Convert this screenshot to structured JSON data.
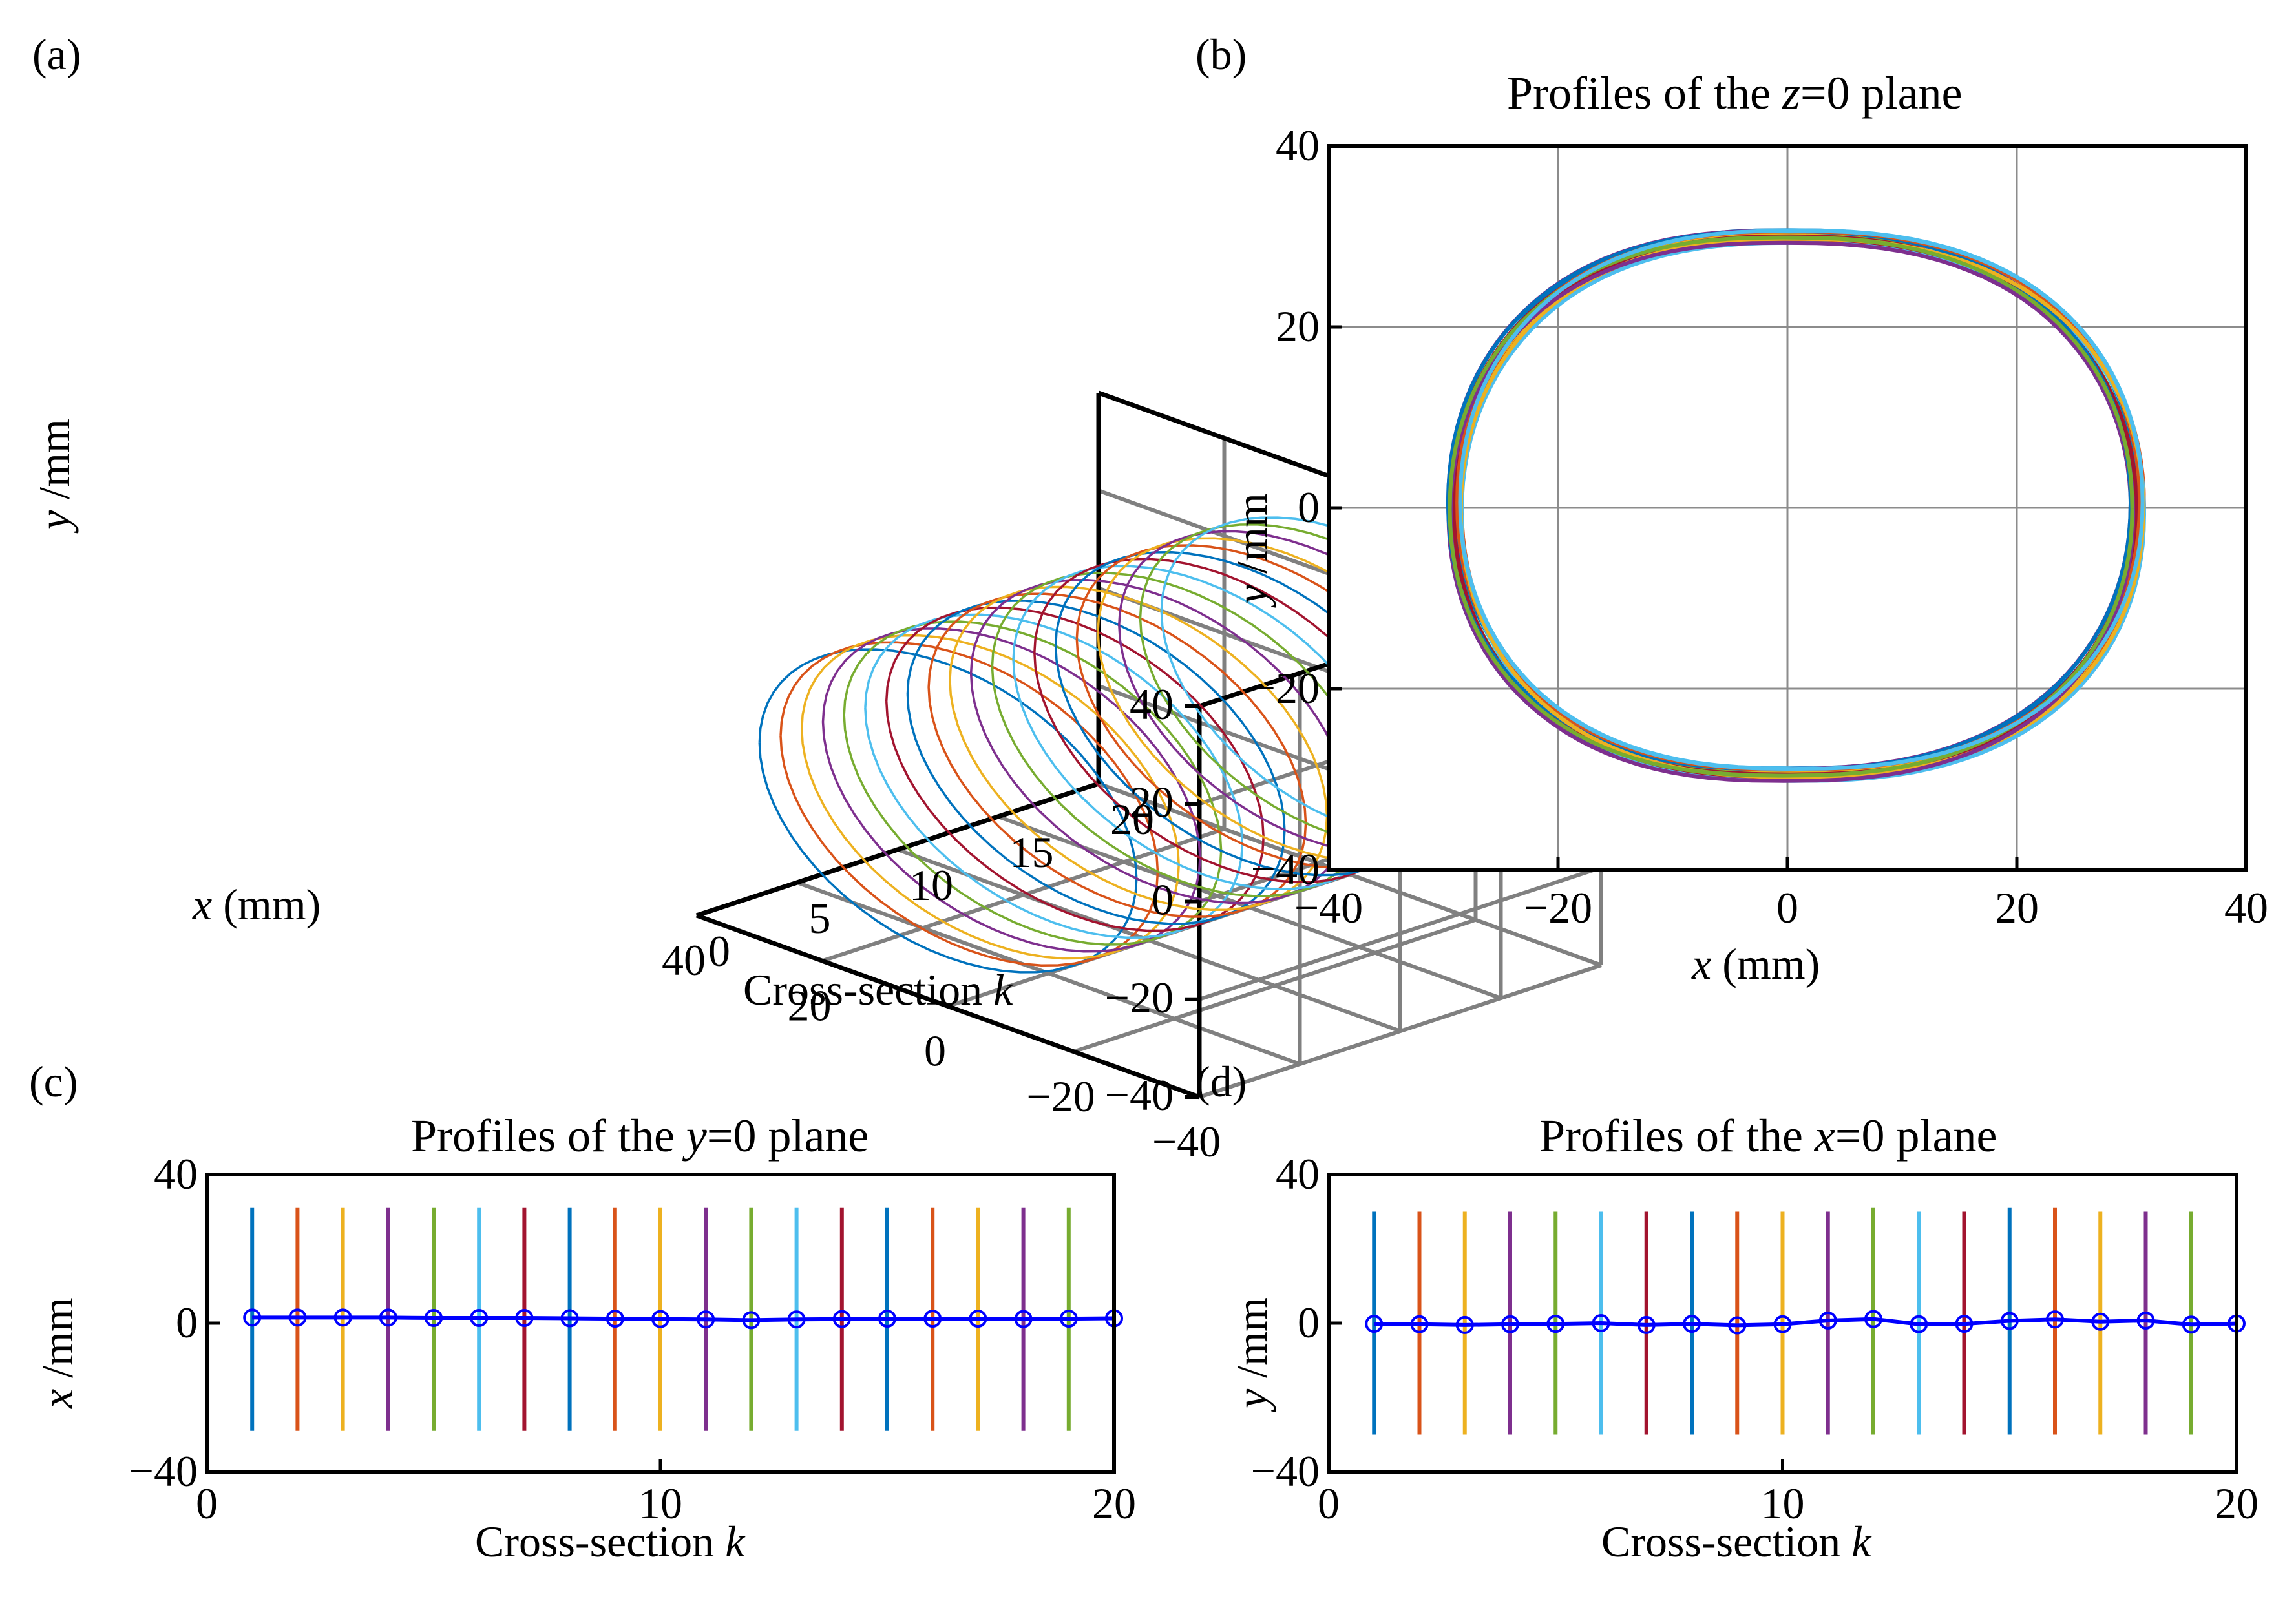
{
  "figure": {
    "palette": [
      "#0072BD",
      "#D95319",
      "#EDB120",
      "#7E2F8E",
      "#77AC30",
      "#4DBEEE",
      "#A2142F"
    ],
    "mean_marker_color": "#0000FF"
  },
  "chart_data": [
    {
      "panel": "(a)",
      "type": "line",
      "title": "",
      "projection": "3d",
      "xlabel_var": "x",
      "xlabel_unit": " (mm)",
      "ylabel_var": "y",
      "ylabel_unit": " /mm",
      "zlabel_text": "Cross-section ",
      "zlabel_var": "k",
      "x_ticks": [
        "-40",
        "-20",
        "0",
        "20",
        "40"
      ],
      "y_ticks": [
        "-40",
        "-20",
        "0",
        "20",
        "40"
      ],
      "k_ticks": [
        "0",
        "5",
        "10",
        "15",
        "20"
      ],
      "xlim": [
        -40,
        40
      ],
      "ylim": [
        -40,
        40
      ],
      "klim": [
        0,
        20
      ],
      "series_count": 20,
      "radius_x": 30,
      "radius_y": 30,
      "grid": true
    },
    {
      "panel": "(b)",
      "type": "line",
      "title_pre": "Profiles of the ",
      "title_var": "z",
      "title_post": "=0 plane",
      "xlabel_var": "x",
      "xlabel_unit": " (mm)",
      "ylabel_var": "y",
      "ylabel_unit": " /mm",
      "x_ticks": [
        "-40",
        "-20",
        "0",
        "20",
        "40"
      ],
      "y_ticks": [
        "-40",
        "-20",
        "0",
        "20",
        "40"
      ],
      "xlim": [
        -40,
        40
      ],
      "ylim": [
        -40,
        40
      ],
      "series_count": 20,
      "profile": {
        "x_left": -29,
        "x_right": 30.5,
        "y_top": 30,
        "y_bottom": -29.5
      },
      "grid": true
    },
    {
      "panel": "(c)",
      "type": "line",
      "title_pre": "Profiles of the ",
      "title_var": "y",
      "title_post": "=0 plane",
      "xlabel_text": "Cross-section ",
      "xlabel_var": "k",
      "ylabel_var": "x",
      "ylabel_unit": " /mm",
      "x_ticks": [
        "0",
        "10",
        "20"
      ],
      "y_ticks": [
        "-40",
        "0",
        "40"
      ],
      "xlim": [
        0,
        20
      ],
      "ylim": [
        -40,
        40
      ],
      "k": [
        1,
        2,
        3,
        4,
        5,
        6,
        7,
        8,
        9,
        10,
        11,
        12,
        13,
        14,
        15,
        16,
        17,
        18,
        19,
        20
      ],
      "segment_top": [
        31,
        31,
        31,
        31,
        31,
        31,
        31,
        31,
        31,
        31,
        31,
        31,
        31,
        31,
        31,
        31,
        31,
        31,
        31,
        31
      ],
      "segment_bottom": [
        -29,
        -29,
        -29,
        -29,
        -29,
        -29,
        -29,
        -29,
        -29,
        -29,
        -29,
        -29,
        -29,
        -29,
        -29,
        -29,
        -29,
        -29,
        -29,
        -29
      ],
      "mean": [
        1.5,
        1.5,
        1.5,
        1.5,
        1.4,
        1.4,
        1.4,
        1.3,
        1.2,
        1.1,
        1.0,
        0.8,
        1.0,
        1.1,
        1.2,
        1.2,
        1.2,
        1.1,
        1.2,
        1.3
      ]
    },
    {
      "panel": "(d)",
      "type": "line",
      "title_pre": "Profiles of the ",
      "title_var": "x",
      "title_post": "=0 plane",
      "xlabel_text": "Cross-section ",
      "xlabel_var": "k",
      "ylabel_var": "y",
      "ylabel_unit": " /mm",
      "x_ticks": [
        "0",
        "10",
        "20"
      ],
      "y_ticks": [
        "-40",
        "0",
        "40"
      ],
      "xlim": [
        0,
        20
      ],
      "ylim": [
        -40,
        40
      ],
      "k": [
        1,
        2,
        3,
        4,
        5,
        6,
        7,
        8,
        9,
        10,
        11,
        12,
        13,
        14,
        15,
        16,
        17,
        18,
        19,
        20
      ],
      "segment_top": [
        30,
        30,
        30,
        30,
        30,
        30,
        30,
        30,
        30,
        30,
        30,
        31,
        30,
        30,
        31,
        31,
        30,
        30,
        30,
        30
      ],
      "segment_bottom": [
        -30,
        -30,
        -30,
        -30,
        -30,
        -30,
        -30,
        -30,
        -30,
        -30,
        -30,
        -30,
        -30,
        -30,
        -30,
        -30,
        -30,
        -30,
        -30,
        -30
      ],
      "mean": [
        -0.2,
        -0.3,
        -0.5,
        -0.3,
        -0.2,
        0,
        -0.5,
        -0.2,
        -0.6,
        -0.3,
        0.7,
        1.1,
        -0.3,
        -0.2,
        0.6,
        1.0,
        0.4,
        0.7,
        -0.4,
        -0.1
      ]
    }
  ]
}
